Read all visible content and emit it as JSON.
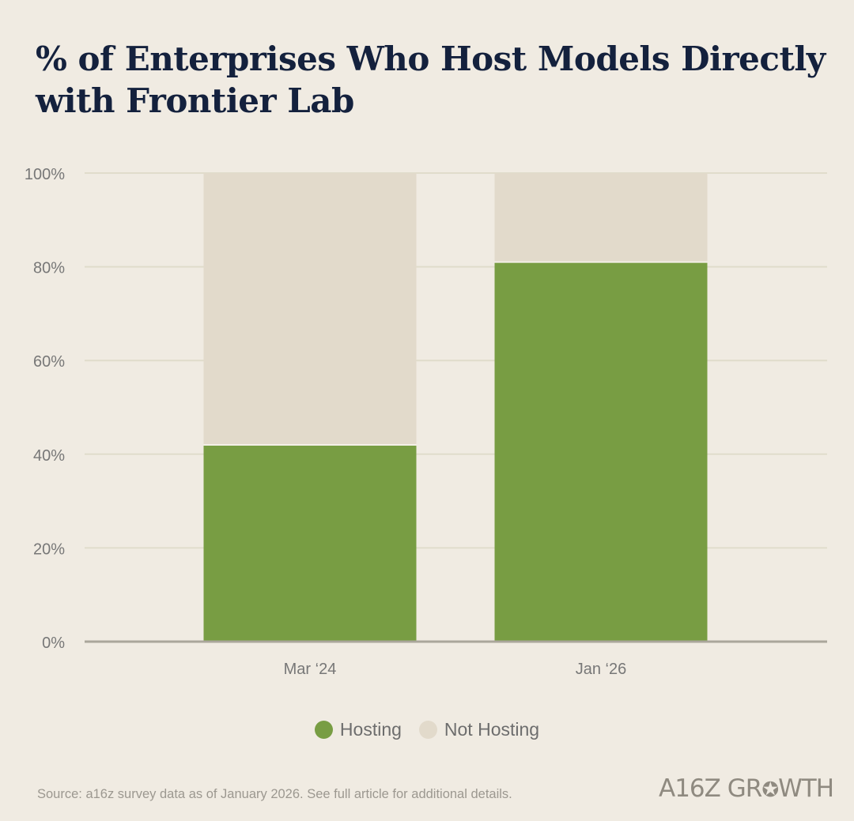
{
  "colors": {
    "hosting": "#789d43",
    "not_hosting": "#e2dacb",
    "background": "#f0ebe2",
    "gridline": "#e0dccb",
    "axis": "#aaa69b",
    "tick_text": "#777777"
  },
  "chart_data": {
    "type": "bar",
    "stacked": true,
    "title": "% of Enterprises Who Host Models Directly with Frontier Lab",
    "categories": [
      "Mar ‘24",
      "Jan ‘26"
    ],
    "series": [
      {
        "name": "Hosting",
        "values": [
          42,
          81
        ]
      },
      {
        "name": "Not Hosting",
        "values": [
          58,
          19
        ]
      }
    ],
    "ylim": [
      0,
      100
    ],
    "yticks": [
      0,
      20,
      40,
      60,
      80,
      100
    ],
    "ytick_labels": [
      "0%",
      "20%",
      "40%",
      "60%",
      "80%",
      "100%"
    ],
    "xlabel": "",
    "ylabel": "",
    "grid": true,
    "legend_position": "bottom-center"
  },
  "legend": {
    "hosting_label": "Hosting",
    "not_hosting_label": "Not Hosting"
  },
  "footer": {
    "source": "Source: a16z survey data as of January 2026. See full article for additional details.",
    "logo_text": "A16Z GROWTH"
  }
}
